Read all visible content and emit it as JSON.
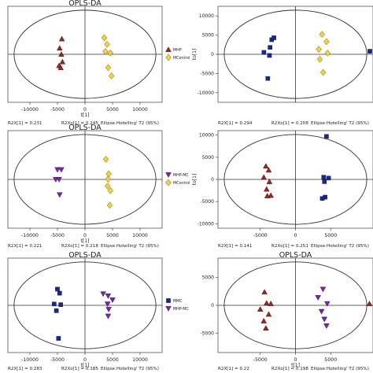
{
  "figure": {
    "panel_title": "OPLS-DA",
    "footer_ellipse": "Ellipse:Hotelling' T2 (95%)"
  },
  "chart_data": [
    {
      "type": "scatter",
      "title": "OPLS-DA",
      "xlabel": "t[1]",
      "ylabel": "",
      "xticks": [
        "-10000",
        "-5000",
        "0",
        "5000",
        "10000"
      ],
      "yticks": [
        "",
        "",
        "",
        "",
        ""
      ],
      "xlim": [
        -14000,
        14000
      ],
      "ylim": [
        -14000,
        14000
      ],
      "footer": [
        "R2X[1] = 0.231",
        "R2Xo[1] = 0.245"
      ],
      "legend": [
        "MHP",
        "MControl"
      ],
      "series": [
        {
          "name": "MHP",
          "marker": "triangle-up",
          "color": "#a3221c",
          "points": [
            [
              -4200,
              4500
            ],
            [
              -4600,
              1800
            ],
            [
              -4300,
              0
            ],
            [
              -4100,
              -2200
            ],
            [
              -4700,
              -3300
            ],
            [
              -4400,
              -3900
            ]
          ]
        },
        {
          "name": "MControl",
          "marker": "diamond",
          "color": "#f2d23a",
          "points": [
            [
              3500,
              4800
            ],
            [
              4000,
              2900
            ],
            [
              3700,
              800
            ],
            [
              4600,
              400
            ],
            [
              4200,
              -3900
            ],
            [
              4800,
              -6300
            ]
          ]
        }
      ]
    },
    {
      "type": "scatter",
      "title": "",
      "xlabel": "",
      "ylabel": "to[1]",
      "xticks": [],
      "yticks": [
        "10000",
        "5000",
        "0",
        "-5000",
        "-10000"
      ],
      "xlim": [
        -14000,
        14000
      ],
      "ylim": [
        -12500,
        12500
      ],
      "footer": [
        "R2X[1] = 0.294",
        "R2Xo[1] = 0.208"
      ],
      "legend": [],
      "series": [
        {
          "name": "",
          "marker": "square",
          "color": "#16279a",
          "points": [
            [
              -4300,
              3800
            ],
            [
              -3900,
              4300
            ],
            [
              -4600,
              1800
            ],
            [
              -5700,
              500
            ],
            [
              -4700,
              -300
            ],
            [
              -5000,
              -6300
            ],
            [
              13500,
              800
            ]
          ]
        },
        {
          "name": "",
          "marker": "diamond",
          "color": "#f2d23a",
          "points": [
            [
              4800,
              5200
            ],
            [
              5600,
              3300
            ],
            [
              4200,
              1300
            ],
            [
              5800,
              300
            ],
            [
              4400,
              -1300
            ],
            [
              5000,
              -4700
            ]
          ]
        }
      ]
    },
    {
      "type": "scatter",
      "title": "OPLS-DA",
      "xlabel": "t[1]",
      "ylabel": "",
      "xticks": [
        "-10000",
        "-5000",
        "0",
        "5000",
        "10000"
      ],
      "yticks": [
        "",
        "",
        "",
        "",
        ""
      ],
      "xlim": [
        -14000,
        14000
      ],
      "ylim": [
        -14000,
        14000
      ],
      "footer": [
        "R2X[1] = 0.221",
        "R2Xo[1] = 0.218"
      ],
      "legend": [
        "MHP-MC",
        "MControl"
      ],
      "series": [
        {
          "name": "MHP-MC",
          "marker": "triangle-down",
          "color": "#7b1fbf",
          "points": [
            [
              -5000,
              2800
            ],
            [
              -4300,
              2800
            ],
            [
              -5300,
              0
            ],
            [
              -4700,
              0
            ],
            [
              -4600,
              -4400
            ]
          ]
        },
        {
          "name": "MControl",
          "marker": "diamond",
          "color": "#f2d23a",
          "points": [
            [
              3800,
              5800
            ],
            [
              4300,
              1600
            ],
            [
              4200,
              100
            ],
            [
              4100,
              -1900
            ],
            [
              4600,
              -3200
            ],
            [
              4500,
              -7400
            ]
          ]
        }
      ]
    },
    {
      "type": "scatter",
      "title": "",
      "xlabel": "",
      "ylabel": "to[1]",
      "xticks": [
        "-5000",
        "0",
        "5000"
      ],
      "yticks": [
        "10000",
        "5000",
        "0",
        "-5000",
        "-10000"
      ],
      "xlim": [
        -11000,
        11000
      ],
      "ylim": [
        -11000,
        11000
      ],
      "footer": [
        "R2X[1] = 0.141",
        "R2Xo[1] = 0.251"
      ],
      "legend": [],
      "series": [
        {
          "name": "",
          "marker": "triangle-up",
          "color": "#a3221c",
          "points": [
            [
              -4200,
              3000
            ],
            [
              -3800,
              2100
            ],
            [
              -4500,
              500
            ],
            [
              -3700,
              -500
            ],
            [
              -4100,
              -2200
            ],
            [
              -3500,
              -3600
            ],
            [
              -4000,
              -3700
            ]
          ]
        },
        {
          "name": "",
          "marker": "square",
          "color": "#16279a",
          "points": [
            [
              4400,
              9700
            ],
            [
              4000,
              500
            ],
            [
              4700,
              300
            ],
            [
              4100,
              -500
            ],
            [
              4200,
              -4000
            ],
            [
              3800,
              -4300
            ]
          ]
        }
      ]
    },
    {
      "type": "scatter",
      "title": "OPLS-DA",
      "xlabel": "t[1]",
      "ylabel": "",
      "xticks": [
        "-10000",
        "-5000",
        "0",
        "5000",
        "10000"
      ],
      "yticks": [
        "",
        "",
        "",
        "",
        ""
      ],
      "xlim": [
        -14000,
        14000
      ],
      "ylim": [
        -14000,
        14000
      ],
      "footer": [
        "R2X[1] = 0.283",
        "R2Xo[1] = 0.185"
      ],
      "legend": [
        "MMC",
        "MHP-MC"
      ],
      "series": [
        {
          "name": "MMC",
          "marker": "square",
          "color": "#16279a",
          "points": [
            [
              -5000,
              4800
            ],
            [
              -4600,
              3600
            ],
            [
              -5600,
              400
            ],
            [
              -4400,
              200
            ],
            [
              -5200,
              -1600
            ],
            [
              -4800,
              -9800
            ]
          ]
        },
        {
          "name": "MHP-MC",
          "marker": "triangle-down",
          "color": "#7b1fbf",
          "points": [
            [
              3300,
              3400
            ],
            [
              4200,
              2800
            ],
            [
              5000,
              1600
            ],
            [
              4100,
              400
            ],
            [
              4300,
              -1200
            ],
            [
              4200,
              -3200
            ]
          ]
        }
      ]
    },
    {
      "type": "scatter",
      "title": "OPLS-DA",
      "xlabel": "t[1]",
      "ylabel": "",
      "xticks": [
        "-5000",
        "0",
        "5000"
      ],
      "yticks": [
        "5000",
        "0",
        "-5000"
      ],
      "xlim": [
        -11000,
        11000
      ],
      "ylim": [
        -8500,
        8500
      ],
      "footer": [
        "R2X[1] = 0.22",
        "R2Xo[1] = 0.198"
      ],
      "legend": [],
      "series": [
        {
          "name": "",
          "marker": "triangle-up",
          "color": "#a3221c",
          "points": [
            [
              -4400,
              2400
            ],
            [
              -4100,
              400
            ],
            [
              -3500,
              300
            ],
            [
              -5000,
              -700
            ],
            [
              -3800,
              -1600
            ],
            [
              -4500,
              -2800
            ],
            [
              -4200,
              -4100
            ]
          ]
        },
        {
          "name": "",
          "marker": "triangle-down",
          "color": "#7b1fbf",
          "points": [
            [
              3900,
              2900
            ],
            [
              3200,
              1400
            ],
            [
              4500,
              300
            ],
            [
              3700,
              -1100
            ],
            [
              4100,
              -2500
            ],
            [
              4400,
              -3700
            ]
          ]
        },
        {
          "name": "",
          "marker": "triangle-up",
          "color": "#a3221c",
          "points": [
            [
              10500,
              300
            ]
          ]
        }
      ]
    }
  ]
}
